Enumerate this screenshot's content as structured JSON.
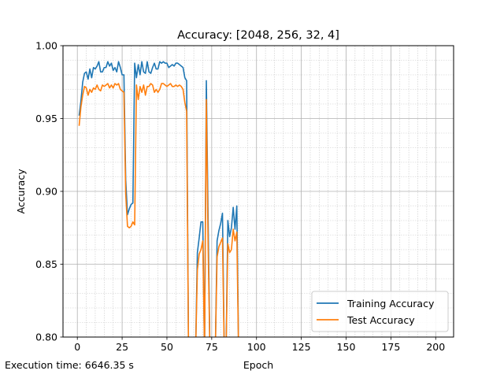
{
  "chart_data": {
    "type": "line",
    "title": "Accuracy: [2048, 256, 32, 4]",
    "xlabel": "Epoch",
    "ylabel": "Accuracy",
    "xlim": [
      -8,
      210
    ],
    "ylim": [
      0.8,
      1.0
    ],
    "xticks": [
      0,
      25,
      50,
      75,
      100,
      125,
      150,
      175,
      200
    ],
    "yticks": [
      0.8,
      0.85,
      0.9,
      0.95,
      1.0
    ],
    "ytick_labels": [
      "0.80",
      "0.85",
      "0.90",
      "0.95",
      "1.00"
    ],
    "grid": true,
    "minor_grid": true,
    "legend_position": "lower-right",
    "series": [
      {
        "name": "Training Accuracy",
        "color": "#1f77b4",
        "x": [
          1,
          2,
          3,
          4,
          5,
          6,
          7,
          8,
          9,
          10,
          11,
          12,
          13,
          14,
          15,
          16,
          17,
          18,
          19,
          20,
          21,
          22,
          23,
          24,
          25,
          26,
          27,
          28,
          29,
          30,
          31,
          32,
          33,
          34,
          35,
          36,
          37,
          38,
          39,
          40,
          41,
          42,
          43,
          44,
          45,
          46,
          47,
          48,
          49,
          50,
          51,
          52,
          53,
          54,
          55,
          56,
          57,
          58,
          59,
          60,
          61,
          62,
          63,
          64,
          65,
          66,
          67,
          68,
          69,
          70,
          71,
          72,
          73,
          74,
          75,
          76,
          77,
          78,
          79,
          80,
          81,
          82,
          83,
          84,
          85,
          86,
          87,
          88,
          89,
          90
        ],
        "y": [
          0.952,
          0.962,
          0.975,
          0.981,
          0.982,
          0.977,
          0.984,
          0.978,
          0.985,
          0.984,
          0.986,
          0.989,
          0.982,
          0.982,
          0.985,
          0.985,
          0.989,
          0.986,
          0.988,
          0.983,
          0.985,
          0.982,
          0.989,
          0.985,
          0.98,
          0.98,
          0.908,
          0.884,
          0.888,
          0.891,
          0.892,
          0.988,
          0.978,
          0.987,
          0.98,
          0.989,
          0.982,
          0.981,
          0.989,
          0.982,
          0.981,
          0.985,
          0.988,
          0.984,
          0.984,
          0.989,
          0.988,
          0.989,
          0.988,
          0.988,
          0.985,
          0.986,
          0.987,
          0.986,
          0.988,
          0.988,
          0.987,
          0.986,
          0.985,
          0.978,
          0.976,
          0.8,
          0.79,
          0.79,
          0.79,
          0.79,
          0.858,
          0.868,
          0.879,
          0.879,
          0.79,
          0.976,
          0.88,
          0.79,
          0.79,
          0.79,
          0.79,
          0.866,
          0.873,
          0.878,
          0.885,
          0.79,
          0.79,
          0.88,
          0.869,
          0.875,
          0.889,
          0.874,
          0.89,
          0.79
        ]
      },
      {
        "name": "Test Accuracy",
        "color": "#ff7f0e",
        "x": [
          1,
          2,
          3,
          4,
          5,
          6,
          7,
          8,
          9,
          10,
          11,
          12,
          13,
          14,
          15,
          16,
          17,
          18,
          19,
          20,
          21,
          22,
          23,
          24,
          25,
          26,
          27,
          28,
          29,
          30,
          31,
          32,
          33,
          34,
          35,
          36,
          37,
          38,
          39,
          40,
          41,
          42,
          43,
          44,
          45,
          46,
          47,
          48,
          49,
          50,
          51,
          52,
          53,
          54,
          55,
          56,
          57,
          58,
          59,
          60,
          61,
          62,
          63,
          64,
          65,
          66,
          67,
          68,
          69,
          70,
          71,
          72,
          73,
          74,
          75,
          76,
          77,
          78,
          79,
          80,
          81,
          82,
          83,
          84,
          85,
          86,
          87,
          88,
          89,
          90
        ],
        "y": [
          0.945,
          0.958,
          0.966,
          0.972,
          0.971,
          0.966,
          0.97,
          0.968,
          0.971,
          0.97,
          0.973,
          0.97,
          0.969,
          0.973,
          0.972,
          0.973,
          0.974,
          0.971,
          0.973,
          0.971,
          0.974,
          0.973,
          0.974,
          0.97,
          0.969,
          0.968,
          0.898,
          0.876,
          0.875,
          0.876,
          0.879,
          0.877,
          0.973,
          0.963,
          0.972,
          0.968,
          0.973,
          0.966,
          0.972,
          0.972,
          0.974,
          0.973,
          0.968,
          0.97,
          0.968,
          0.97,
          0.974,
          0.974,
          0.973,
          0.972,
          0.973,
          0.974,
          0.972,
          0.972,
          0.973,
          0.972,
          0.973,
          0.972,
          0.97,
          0.961,
          0.955,
          0.8,
          0.79,
          0.79,
          0.79,
          0.79,
          0.846,
          0.857,
          0.86,
          0.866,
          0.79,
          0.963,
          0.862,
          0.79,
          0.79,
          0.79,
          0.79,
          0.855,
          0.862,
          0.865,
          0.868,
          0.79,
          0.79,
          0.864,
          0.858,
          0.86,
          0.874,
          0.866,
          0.872,
          0.79
        ]
      }
    ]
  },
  "footer": {
    "execution_time": "Execution time: 6646.35 s"
  }
}
